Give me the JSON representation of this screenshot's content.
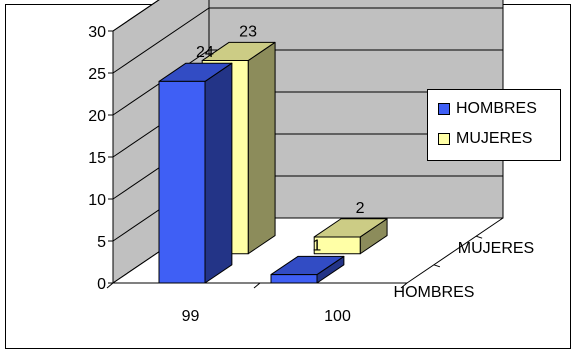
{
  "chart_data": {
    "type": "bar",
    "categories": [
      "99",
      "100"
    ],
    "series": [
      {
        "name": "HOMBRES",
        "values": [
          24,
          1
        ],
        "color": "#3f5ff5"
      },
      {
        "name": "MUJERES",
        "values": [
          23,
          2
        ],
        "color": "#ffffa6"
      }
    ],
    "ylim": [
      0,
      30
    ],
    "yticks": [
      "0",
      "5",
      "10",
      "15",
      "20",
      "25",
      "30"
    ],
    "depth_labels": [
      "MUJERES",
      "HOMBRES"
    ],
    "grid": true,
    "legend_position": "right"
  },
  "colors": {
    "wall": "#c0c0c0",
    "hombres_front": "#3f5ff5",
    "mujeres_front": "#ffffa6"
  }
}
